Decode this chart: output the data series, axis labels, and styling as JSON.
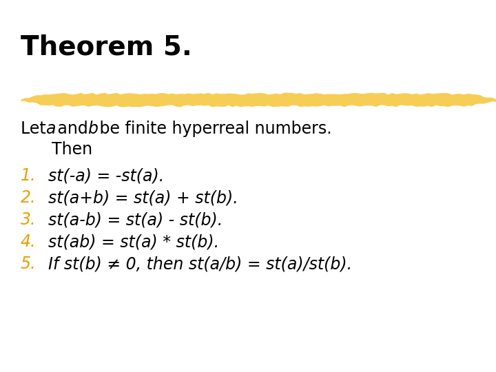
{
  "title": "Theorem 5.",
  "bg_color": "#FFFFFF",
  "title_color": "#000000",
  "body_color": "#000000",
  "number_color": "#E8A000",
  "highlight_color": "#F5C842",
  "title_fontsize": 28,
  "body_fontsize": 17,
  "items": [
    "st(-a) = -st(a).",
    "st(a+b) = st(a) + st(b).",
    "st(a-b) = st(a) - st(b).",
    "st(ab) = st(a) * st(b).",
    "If st(b) ≠ 0, then st(a/b) = st(a)/st(b)."
  ],
  "numbers": [
    "1.",
    "2.",
    "3.",
    "4.",
    "5."
  ]
}
